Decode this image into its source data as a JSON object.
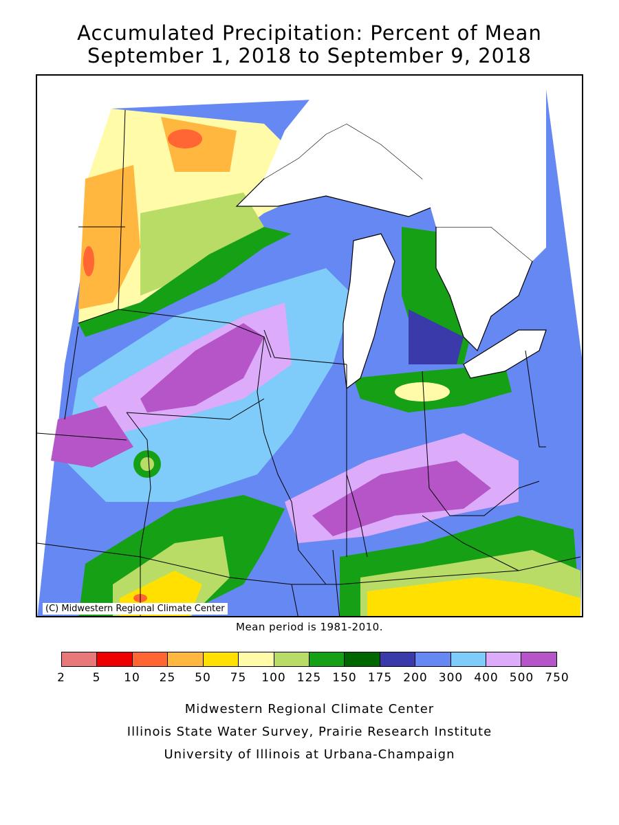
{
  "title": {
    "line1": "Accumulated Precipitation: Percent of Mean",
    "line2": "September 1, 2018 to September 9, 2018"
  },
  "map": {
    "copyright": "(C) Midwestern Regional Climate Center",
    "mean_period_note": "Mean period is 1981-2010."
  },
  "legend": {
    "colors": [
      "#e8787a",
      "#ee0000",
      "#ff6633",
      "#ffb740",
      "#ffe000",
      "#fffba8",
      "#b8dc66",
      "#16a016",
      "#006600",
      "#3a3aaa",
      "#6688f2",
      "#7fcbfa",
      "#dcacfa",
      "#b655c8"
    ],
    "labels": [
      "2",
      "5",
      "10",
      "25",
      "50",
      "75",
      "100",
      "125",
      "150",
      "175",
      "200",
      "300",
      "400",
      "500",
      "750"
    ]
  },
  "credits": [
    "Midwestern Regional Climate Center",
    "Illinois State Water Survey, Prairie Research Institute",
    "University of Illinois at Urbana-Champaign"
  ]
}
